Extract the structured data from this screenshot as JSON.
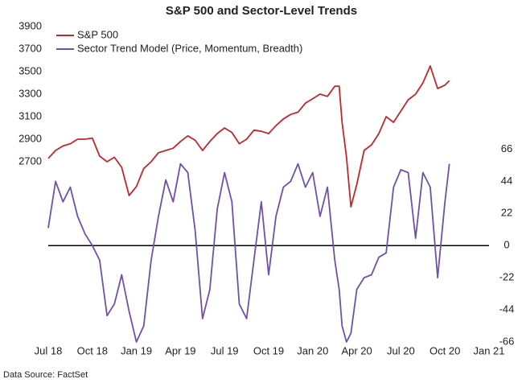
{
  "chart_data": {
    "type": "line",
    "title": "S&P 500 and Sector-Level Trends",
    "source": "Data Source: FactSet",
    "x": [
      0,
      0.5,
      1,
      1.5,
      2,
      2.5,
      3,
      3.5,
      4,
      4.5,
      5,
      5.5,
      6,
      6.5,
      7,
      7.5,
      8,
      8.5,
      9,
      9.5,
      10,
      10.5,
      11,
      11.5,
      12,
      12.5,
      13,
      13.5,
      14,
      14.5,
      15,
      15.5,
      16,
      16.5,
      17,
      17.5,
      18,
      18.5,
      19,
      19.5,
      19.8,
      20,
      20.3,
      20.6,
      21,
      21.5,
      22,
      22.5,
      23,
      23.5,
      24,
      24.5,
      25,
      25.5,
      26,
      26.5,
      27,
      27.3
    ],
    "series": [
      {
        "name": "S&P 500",
        "color": "#c0282d",
        "axis": "y",
        "values": [
          2730,
          2800,
          2840,
          2860,
          2900,
          2900,
          2910,
          2750,
          2700,
          2740,
          2650,
          2400,
          2480,
          2640,
          2700,
          2780,
          2800,
          2820,
          2880,
          2930,
          2890,
          2800,
          2880,
          2950,
          3000,
          2960,
          2860,
          2900,
          2980,
          2970,
          2950,
          3020,
          3080,
          3120,
          3140,
          3220,
          3260,
          3300,
          3280,
          3370,
          3370,
          3050,
          2740,
          2300,
          2500,
          2800,
          2850,
          2950,
          3100,
          3050,
          3150,
          3250,
          3300,
          3400,
          3550,
          3350,
          3380,
          3420
        ]
      },
      {
        "name": "Sector Trend Model (Price, Momentum, Breadth)",
        "color": "#7050a8",
        "axis": "y2",
        "values": [
          12,
          44,
          30,
          40,
          20,
          8,
          0,
          -10,
          -48,
          -40,
          -20,
          -45,
          -66,
          -55,
          -10,
          20,
          45,
          30,
          56,
          50,
          10,
          -50,
          -30,
          25,
          50,
          30,
          -40,
          -50,
          -10,
          30,
          -20,
          20,
          40,
          44,
          56,
          40,
          50,
          20,
          40,
          -10,
          -30,
          -55,
          -66,
          -60,
          -30,
          -22,
          -20,
          -8,
          -5,
          40,
          52,
          50,
          5,
          50,
          40,
          -22,
          30,
          56
        ]
      }
    ],
    "xlim": [
      0,
      30
    ],
    "xticks": [
      {
        "value": 0,
        "label": "Jul 18"
      },
      {
        "value": 3,
        "label": "Oct 18"
      },
      {
        "value": 6,
        "label": "Jan 19"
      },
      {
        "value": 9,
        "label": "Apr 19"
      },
      {
        "value": 12,
        "label": "Jul 19"
      },
      {
        "value": 15,
        "label": "Oct 19"
      },
      {
        "value": 18,
        "label": "Jan 20"
      },
      {
        "value": 21,
        "label": "Apr 20"
      },
      {
        "value": 24,
        "label": "Jul 20"
      },
      {
        "value": 27,
        "label": "Oct 20"
      },
      {
        "value": 30,
        "label": "Jan 21"
      }
    ],
    "ylim": [
      1100,
      3900
    ],
    "yticks": [
      2700,
      2900,
      3100,
      3300,
      3500,
      3700,
      3900
    ],
    "y2lim": [
      -66,
      150
    ],
    "y2ticks": [
      -66,
      -44,
      -22,
      0,
      22,
      44,
      66
    ],
    "zero_line": true,
    "legend": "top-left"
  }
}
